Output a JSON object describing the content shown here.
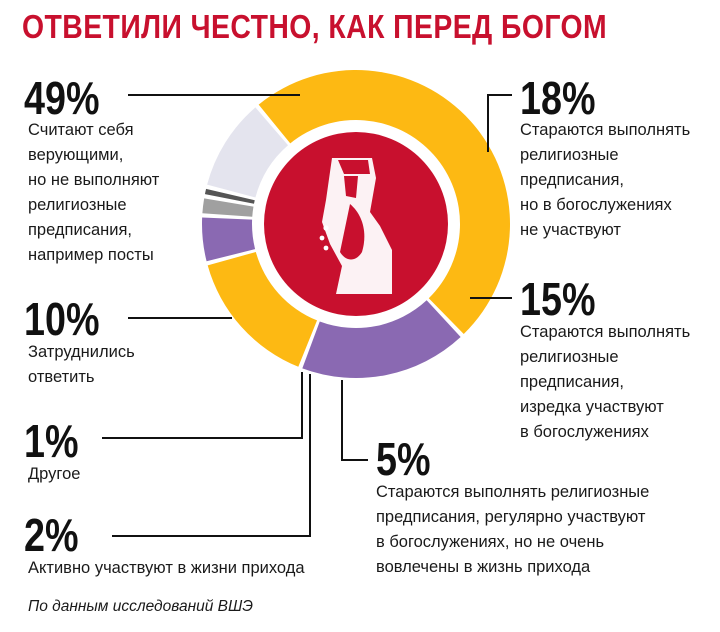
{
  "title": "ОТВЕТИЛИ ЧЕСТНО, КАК ПЕРЕД БОГОМ",
  "source": "По данным исследований ВШЭ",
  "chart_data": {
    "type": "pie",
    "title": "ОТВЕТИЛИ ЧЕСТНО, КАК ПЕРЕД БОГОМ",
    "slices": [
      {
        "value": 49,
        "label": "49%",
        "description": "Считают себя\nверующими,\nно не выполняют\nрелигиозные\nпредписания,\nнапример посты",
        "color": "#fdb913"
      },
      {
        "value": 18,
        "label": "18%",
        "description": "Стараются выполнять\nрелигиозные\nпредписания,\nно в богослужениях\nне участвуют",
        "color": "#8a69b2"
      },
      {
        "value": 15,
        "label": "15%",
        "description": "Стараются выполнять\nрелигиозные\nпредписания,\nизредка участвуют\nв богослужениях",
        "color": "#fdb913"
      },
      {
        "value": 5,
        "label": "5%",
        "description": "Стараются выполнять религиозные\nпредписания, регулярно участвуют\nв богослужениях, но не очень\nвовлечены в жизнь прихода",
        "color": "#8a69b2"
      },
      {
        "value": 2,
        "label": "2%",
        "description": "Активно участвуют в жизни прихода",
        "color": "#a0a0a0"
      },
      {
        "value": 1,
        "label": "1%",
        "description": "Другое",
        "color": "#555555"
      },
      {
        "value": 10,
        "label": "10%",
        "description": "Затруднились\nответить",
        "color": "#e4e4ee"
      }
    ],
    "center_color": "#c8102e"
  }
}
